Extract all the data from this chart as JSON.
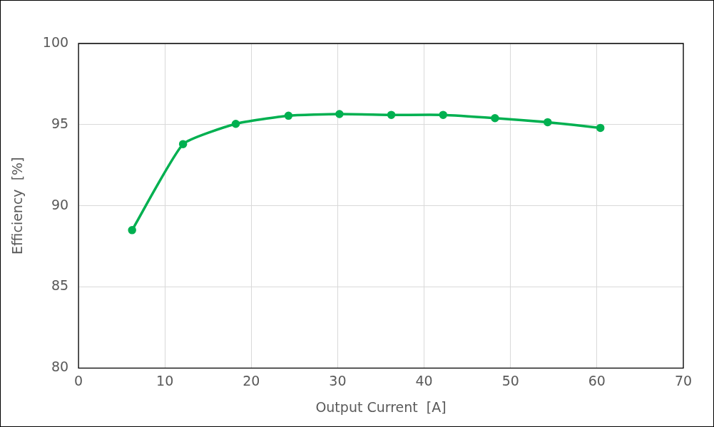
{
  "chart_data": {
    "type": "line",
    "xlabel": "Output Current  [A]",
    "ylabel": "Efficiency  [%]",
    "x": [
      6.2,
      12.1,
      18.2,
      24.3,
      30.2,
      36.2,
      42.2,
      48.2,
      54.3,
      60.4
    ],
    "series": [
      {
        "color": "#00b050",
        "values": [
          88.5,
          93.8,
          95.05,
          95.55,
          95.65,
          95.6,
          95.6,
          95.4,
          95.15,
          94.8
        ]
      }
    ],
    "xlim": [
      0,
      70
    ],
    "xticks": [
      0,
      10,
      20,
      30,
      40,
      50,
      60,
      70
    ],
    "ylim": [
      80,
      100
    ],
    "yticks": [
      80,
      85,
      90,
      95,
      100
    ],
    "grid": true,
    "legend": false,
    "marker": "circle",
    "line_style": "solid"
  }
}
